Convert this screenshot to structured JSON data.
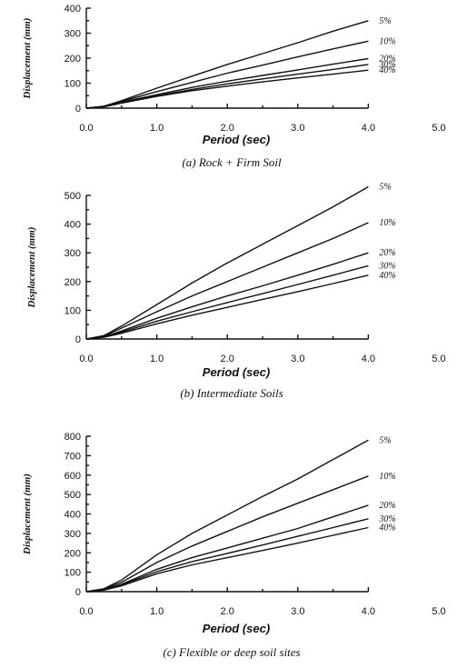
{
  "chart_data": [
    {
      "type": "line",
      "caption": "(a) Rock + Firm Soil",
      "xlabel": "Period (sec)",
      "ylabel": "Displacement (mm)",
      "xlim": [
        0,
        5
      ],
      "ylim": [
        0,
        400
      ],
      "xticks": [
        "0.0",
        "1.0",
        "2.0",
        "3.0",
        "4.0",
        "5.0"
      ],
      "yticks": [
        "0",
        "100",
        "200",
        "300",
        "400"
      ],
      "series": [
        {
          "name": "5%",
          "x": [
            0,
            0.25,
            0.5,
            1.0,
            1.5,
            2.0,
            2.5,
            3.0,
            3.5,
            4.0
          ],
          "values": [
            0,
            8,
            30,
            80,
            128,
            175,
            218,
            262,
            308,
            350
          ]
        },
        {
          "name": "10%",
          "x": [
            0,
            0.25,
            0.5,
            1.0,
            1.5,
            2.0,
            2.5,
            3.0,
            3.5,
            4.0
          ],
          "values": [
            0,
            7,
            27,
            66,
            103,
            140,
            172,
            205,
            237,
            268
          ]
        },
        {
          "name": "20%",
          "x": [
            0,
            0.25,
            0.5,
            1.0,
            1.5,
            2.0,
            2.5,
            3.0,
            3.5,
            4.0
          ],
          "values": [
            0,
            6,
            24,
            54,
            83,
            108,
            131,
            153,
            176,
            198
          ]
        },
        {
          "name": "30%",
          "x": [
            0,
            0.25,
            0.5,
            1.0,
            1.5,
            2.0,
            2.5,
            3.0,
            3.5,
            4.0
          ],
          "values": [
            0,
            6,
            22,
            50,
            75,
            97,
            117,
            136,
            155,
            175
          ]
        },
        {
          "name": "40%",
          "x": [
            0,
            0.25,
            0.5,
            1.0,
            1.5,
            2.0,
            2.5,
            3.0,
            3.5,
            4.0
          ],
          "values": [
            0,
            5,
            20,
            47,
            70,
            88,
            105,
            121,
            136,
            152
          ]
        }
      ]
    },
    {
      "type": "line",
      "caption": "(b) Intermediate Soils",
      "xlabel": "Period (sec)",
      "ylabel": "Displacement (mm)",
      "xlim": [
        0,
        5
      ],
      "ylim": [
        0,
        500
      ],
      "xticks": [
        "0.0",
        "1.0",
        "2.0",
        "3.0",
        "4.0",
        "5.0"
      ],
      "yticks": [
        "0",
        "100",
        "200",
        "300",
        "400",
        "500"
      ],
      "series": [
        {
          "name": "5%",
          "x": [
            0,
            0.25,
            0.5,
            1.0,
            1.5,
            2.0,
            2.5,
            3.0,
            3.5,
            4.0
          ],
          "values": [
            0,
            12,
            45,
            120,
            195,
            265,
            330,
            395,
            460,
            530
          ]
        },
        {
          "name": "10%",
          "x": [
            0,
            0.25,
            0.5,
            1.0,
            1.5,
            2.0,
            2.5,
            3.0,
            3.5,
            4.0
          ],
          "values": [
            0,
            10,
            38,
            95,
            150,
            200,
            250,
            300,
            350,
            405
          ]
        },
        {
          "name": "20%",
          "x": [
            0,
            0.25,
            0.5,
            1.0,
            1.5,
            2.0,
            2.5,
            3.0,
            3.5,
            4.0
          ],
          "values": [
            0,
            8,
            28,
            72,
            112,
            150,
            185,
            222,
            260,
            300
          ]
        },
        {
          "name": "30%",
          "x": [
            0,
            0.25,
            0.5,
            1.0,
            1.5,
            2.0,
            2.5,
            3.0,
            3.5,
            4.0
          ],
          "values": [
            0,
            7,
            24,
            62,
            95,
            127,
            158,
            190,
            222,
            255
          ]
        },
        {
          "name": "40%",
          "x": [
            0,
            0.25,
            0.5,
            1.0,
            1.5,
            2.0,
            2.5,
            3.0,
            3.5,
            4.0
          ],
          "values": [
            0,
            6,
            20,
            53,
            83,
            110,
            138,
            165,
            193,
            222
          ]
        }
      ]
    },
    {
      "type": "line",
      "caption": "(c) Flexible or deep soil sites",
      "xlabel": "Period (sec)",
      "ylabel": "Displacement (mm)",
      "xlim": [
        0,
        5
      ],
      "ylim": [
        0,
        800
      ],
      "xticks": [
        "0.0",
        "1.0",
        "2.0",
        "3.0",
        "4.0",
        "5.0"
      ],
      "yticks": [
        "0",
        "100",
        "200",
        "300",
        "400",
        "500",
        "600",
        "700",
        "800"
      ],
      "series": [
        {
          "name": "5%",
          "x": [
            0,
            0.25,
            0.5,
            1.0,
            1.5,
            2.0,
            2.5,
            3.0,
            3.5,
            4.0
          ],
          "values": [
            0,
            15,
            60,
            190,
            300,
            395,
            490,
            580,
            680,
            780
          ]
        },
        {
          "name": "10%",
          "x": [
            0,
            0.25,
            0.5,
            1.0,
            1.5,
            2.0,
            2.5,
            3.0,
            3.5,
            4.0
          ],
          "values": [
            0,
            12,
            48,
            150,
            235,
            310,
            385,
            455,
            525,
            595
          ]
        },
        {
          "name": "20%",
          "x": [
            0,
            0.25,
            0.5,
            1.0,
            1.5,
            2.0,
            2.5,
            3.0,
            3.5,
            4.0
          ],
          "values": [
            0,
            10,
            38,
            115,
            175,
            225,
            275,
            325,
            385,
            445
          ]
        },
        {
          "name": "30%",
          "x": [
            0,
            0.25,
            0.5,
            1.0,
            1.5,
            2.0,
            2.5,
            3.0,
            3.5,
            4.0
          ],
          "values": [
            0,
            9,
            34,
            103,
            155,
            197,
            240,
            285,
            330,
            375
          ]
        },
        {
          "name": "40%",
          "x": [
            0,
            0.25,
            0.5,
            1.0,
            1.5,
            2.0,
            2.5,
            3.0,
            3.5,
            4.0
          ],
          "values": [
            0,
            8,
            30,
            92,
            138,
            175,
            212,
            250,
            290,
            330
          ]
        }
      ]
    }
  ]
}
